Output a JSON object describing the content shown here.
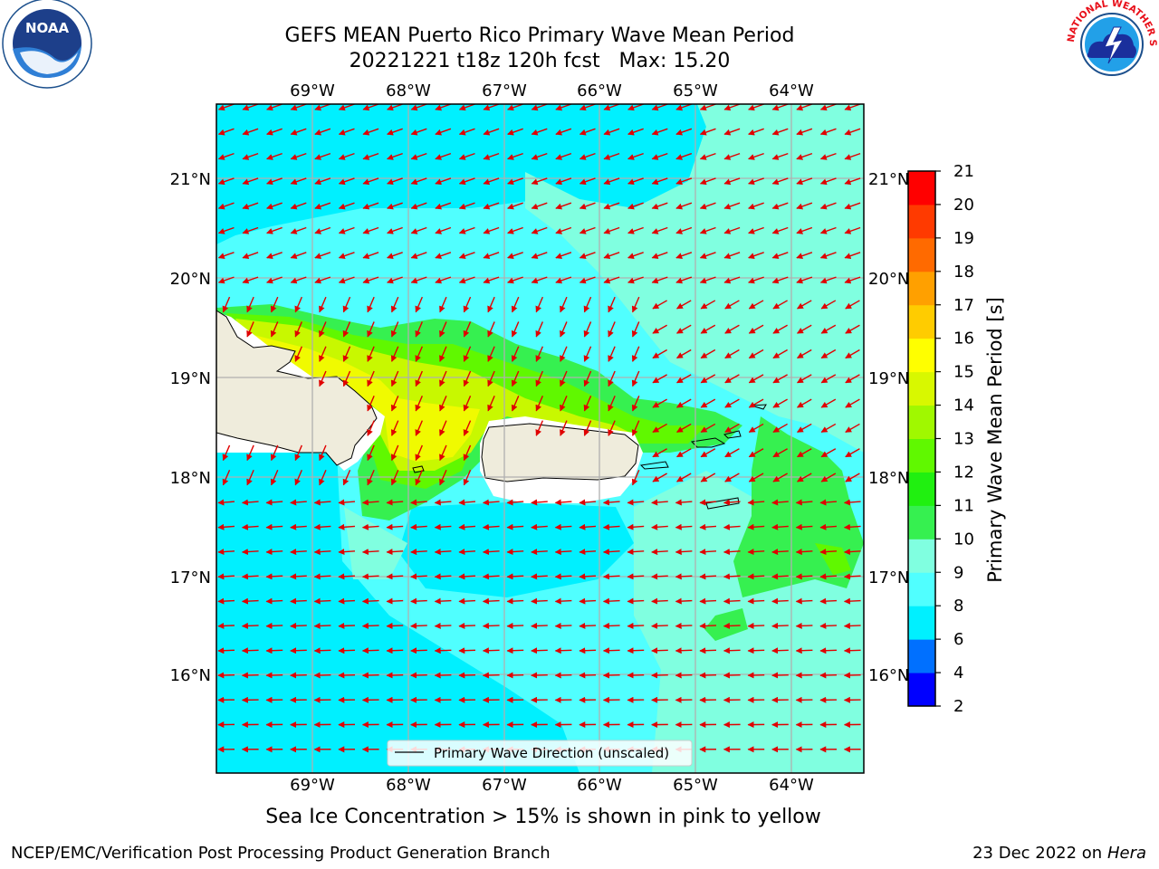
{
  "title_line1": "GEFS MEAN Puerto Rico Primary Wave Mean Period",
  "title_line2": "20221221 t18z 120h fcst   Max: 15.20",
  "caption": "Sea Ice Concentration > 15% is shown in pink to yellow",
  "footer_left": "NCEP/EMC/Verification Post Processing Product Generation Branch",
  "footer_date": "23 Dec 2022 on",
  "footer_host": "Hera",
  "logos": {
    "noaa": {
      "text": "NOAA",
      "ring": "NATIONAL OCEANIC AND ATMOSPHERIC ADMINISTRATION · U.S. DEPARTMENT OF COMMERCE"
    },
    "nws": {
      "ring": "NATIONAL WEATHER SERVICE"
    }
  },
  "map": {
    "lon_labels": [
      "69°W",
      "68°W",
      "67°W",
      "66°W",
      "65°W",
      "64°W"
    ],
    "lat_labels": [
      "21°N",
      "20°N",
      "19°N",
      "18°N",
      "17°N",
      "16°N"
    ],
    "legend_label": "Primary Wave Direction (unscaled)",
    "arrow_color": "#e00000",
    "land_color": "#efecdc"
  },
  "colorbar": {
    "label": "Primary Wave Mean Period [s]",
    "ticks": [
      "2",
      "4",
      "6",
      "8",
      "9",
      "10",
      "11",
      "12",
      "13",
      "14",
      "15",
      "16",
      "17",
      "18",
      "19",
      "20",
      "21"
    ],
    "colors": [
      "#0000ff",
      "#0070ff",
      "#00f0ff",
      "#50ffff",
      "#80ffe0",
      "#36f050",
      "#20f010",
      "#60f800",
      "#a0f800",
      "#d8f800",
      "#ffff00",
      "#ffcc00",
      "#ffa000",
      "#ff6a00",
      "#ff3a00",
      "#ff0000"
    ]
  }
}
